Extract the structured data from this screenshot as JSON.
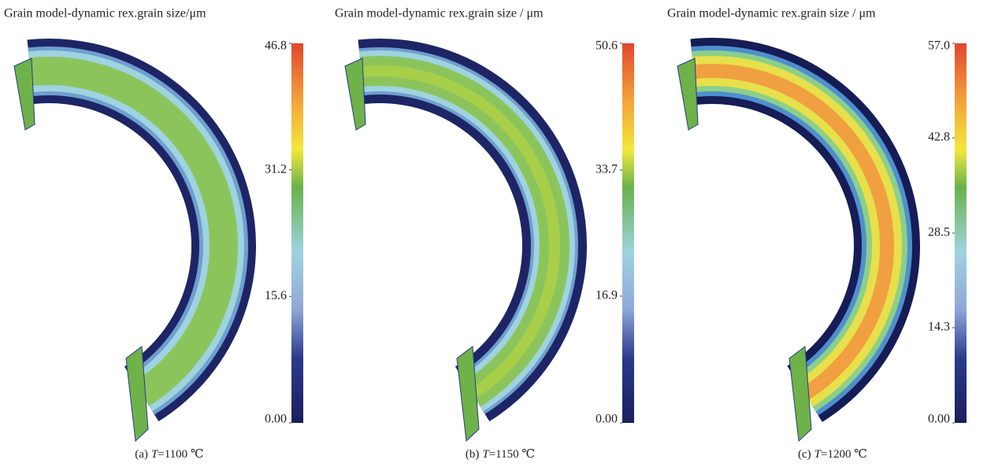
{
  "panels": [
    {
      "title": "Grain model-dynamic rex.grain size/μm",
      "colorbar": {
        "ticks": [
          {
            "value": 0,
            "label": "0.00"
          },
          15.6,
          31.2,
          46.8
        ]
      },
      "caption": {
        "label": "(a)",
        "variable": "T",
        "text": "=1100 ℃"
      }
    },
    {
      "title": "Grain model-dynamic rex.grain size / μm",
      "colorbar": {
        "ticks": [
          {
            "value": 0,
            "label": "0.00"
          },
          16.9,
          33.7,
          50.6
        ]
      },
      "caption": {
        "label": "(b)",
        "variable": "T",
        "text": "=1150 ℃"
      }
    },
    {
      "title": "Grain model-dynamic rex.grain size / μm",
      "colorbar": {
        "ticks": [
          {
            "value": 0,
            "label": "0.00"
          },
          14.3,
          28.5,
          42.8,
          {
            "value": 57,
            "label": "57.0"
          }
        ]
      },
      "caption": {
        "label": "(c)",
        "variable": "T",
        "text": "=1200 ℃"
      }
    }
  ]
}
